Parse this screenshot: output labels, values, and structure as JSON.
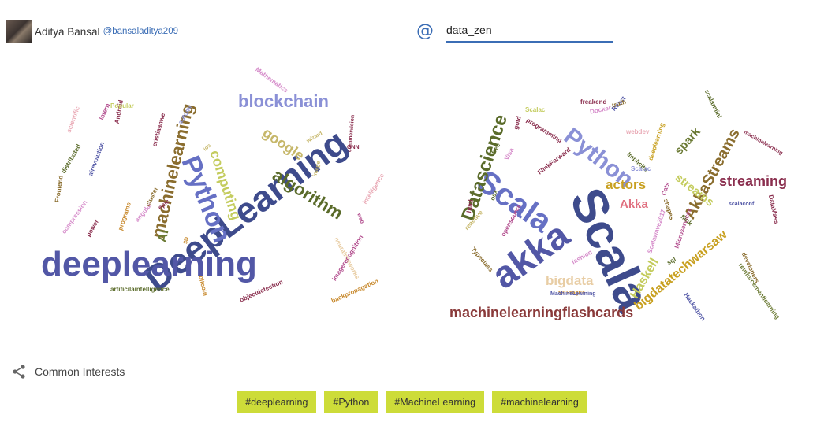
{
  "user": {
    "name": "Aditya Bansal",
    "handle": "@bansaladitya209"
  },
  "compare": {
    "at_symbol": "@",
    "input_value": "data_zen",
    "accent_color": "#3b6db5"
  },
  "left_cloud": {
    "words": [
      {
        "text": "DeepLearning",
        "color": "#3e4b8c"
      },
      {
        "text": "deeplearning",
        "color": "#5257a6"
      },
      {
        "text": "blockchain",
        "color": "#8a90d6"
      },
      {
        "text": "machinelearning",
        "color": "#8a6d2e"
      },
      {
        "text": "Python",
        "color": "#6670c4"
      },
      {
        "text": "algorithm",
        "color": "#5a6b2a"
      },
      {
        "text": "google",
        "color": "#c6b76a"
      },
      {
        "text": "computing",
        "color": "#c4cc5e"
      },
      {
        "text": "AI",
        "color": "#6b7a34"
      },
      {
        "text": "Mathematics",
        "color": "#d58ac9"
      },
      {
        "text": "intelligence",
        "color": "#e9a9b5"
      },
      {
        "text": "neuralnetworks",
        "color": "#e8cda4"
      },
      {
        "text": "imagerecognition",
        "color": "#b14a8c"
      },
      {
        "text": "backpropagation",
        "color": "#c88a2e"
      },
      {
        "text": "objectdetection",
        "color": "#8a2e4e"
      },
      {
        "text": "artificilaintelligence",
        "color": "#5a6b2a"
      },
      {
        "text": "bitcoin",
        "color": "#c88a2e"
      },
      {
        "text": "3D",
        "color": "#c88a2e"
      },
      {
        "text": "power",
        "color": "#8a2e4e"
      },
      {
        "text": "compression",
        "color": "#d58ac9"
      },
      {
        "text": "Frontend",
        "color": "#8a6d2e"
      },
      {
        "text": "distributed",
        "color": "#5a6b2a"
      },
      {
        "text": "airevolution",
        "color": "#5257a6"
      },
      {
        "text": "scientific",
        "color": "#e9a9b5"
      },
      {
        "text": "Intern",
        "color": "#b14a8c"
      },
      {
        "text": "Android",
        "color": "#8a2e4e"
      },
      {
        "text": "Popular",
        "color": "#c4cc5e"
      },
      {
        "text": "cristiaanwe",
        "color": "#8a2e4e"
      },
      {
        "text": "automl",
        "color": "#8a90d6"
      },
      {
        "text": "programs",
        "color": "#c88a2e"
      },
      {
        "text": "angular",
        "color": "#d58ac9"
      },
      {
        "text": "epic",
        "color": "#8a2e4e"
      },
      {
        "text": "ios",
        "color": "#c6b76a"
      },
      {
        "text": "wizard",
        "color": "#c6b76a"
      },
      {
        "text": "image",
        "color": "#c6b76a"
      },
      {
        "text": "commervision",
        "color": "#8a2e4e"
      },
      {
        "text": "GNN",
        "color": "#8a2e4e"
      },
      {
        "text": "web",
        "color": "#b14a8c"
      },
      {
        "text": "cluster",
        "color": "#8a6d2e"
      }
    ]
  },
  "right_cloud": {
    "words": [
      {
        "text": "Scala",
        "color": "#3e4b8c"
      },
      {
        "text": "akka",
        "color": "#5257a6"
      },
      {
        "text": "Scala",
        "color": "#6670c4"
      },
      {
        "text": "Python",
        "color": "#8a90d6"
      },
      {
        "text": "Datascience",
        "color": "#5a6b2a"
      },
      {
        "text": "AkkaStreams",
        "color": "#8a6d2e"
      },
      {
        "text": "streaming",
        "color": "#8a2e4e"
      },
      {
        "text": "machinelearningflashcards",
        "color": "#8a3a3a"
      },
      {
        "text": "bigdatatechwarsaw",
        "color": "#c8a020"
      },
      {
        "text": "Haskell",
        "color": "#c4cc5e"
      },
      {
        "text": "bigdata",
        "color": "#e8cda4"
      },
      {
        "text": "actors",
        "color": "#c8a020"
      },
      {
        "text": "Akka",
        "color": "#e07080"
      },
      {
        "text": "spark",
        "color": "#6b7a34"
      },
      {
        "text": "streams",
        "color": "#c4cc5e"
      },
      {
        "text": "Hackathon",
        "color": "#5257a6"
      },
      {
        "text": "reinforcementlearning",
        "color": "#6b7a34"
      },
      {
        "text": "developers",
        "color": "#8a6d2e"
      },
      {
        "text": "machinelearning",
        "color": "#8a2e4e"
      },
      {
        "text": "Microservices",
        "color": "#b14a8c"
      },
      {
        "text": "Scalawave2017",
        "color": "#d58ac9"
      },
      {
        "text": "MLPrague",
        "color": "#c88a2e"
      },
      {
        "text": "MachineLearning",
        "color": "#5257a6"
      },
      {
        "text": "Typeclass",
        "color": "#8a6d2e"
      },
      {
        "text": "opensource",
        "color": "#b14a8c"
      },
      {
        "text": "reactive",
        "color": "#c6b76a"
      },
      {
        "text": "html",
        "color": "#8a2e4e"
      },
      {
        "text": "free",
        "color": "#5a6b2a"
      },
      {
        "text": "Visa",
        "color": "#d58ac9"
      },
      {
        "text": "gotd",
        "color": "#8a2e4e"
      },
      {
        "text": "Scalac",
        "color": "#c4cc5e"
      },
      {
        "text": "programming",
        "color": "#8a2e4e"
      },
      {
        "text": "FlinkForward",
        "color": "#8a2e4e"
      },
      {
        "text": "freakend",
        "color": "#8a2e4e"
      },
      {
        "text": "Docker",
        "color": "#d58ac9"
      },
      {
        "text": "React",
        "color": "#5257a6"
      },
      {
        "text": "truth",
        "color": "#8a6d2e"
      },
      {
        "text": "scalarmini",
        "color": "#5a6b2a"
      },
      {
        "text": "webdev",
        "color": "#e9a9b5"
      },
      {
        "text": "deeplearning",
        "color": "#c8a020"
      },
      {
        "text": "Implicits",
        "color": "#5a6b2a"
      },
      {
        "text": "Scalac",
        "color": "#8a90d6"
      },
      {
        "text": "Cats",
        "color": "#b14a8c"
      },
      {
        "text": "shapes",
        "color": "#8a6d2e"
      },
      {
        "text": "flink",
        "color": "#5a6b2a"
      },
      {
        "text": "scalaconf",
        "color": "#5257a6"
      },
      {
        "text": "DataMass",
        "color": "#8a2e4e"
      },
      {
        "text": "fashion",
        "color": "#d58ac9"
      },
      {
        "text": "sql",
        "color": "#5a6b2a"
      },
      {
        "text": "osx",
        "color": "#5a6b2a"
      }
    ]
  },
  "common_interests": {
    "label": "Common Interests",
    "tags": [
      "#deeplearning",
      "#Python",
      "#MachineLearning",
      "#machinelearning"
    ],
    "tag_color": "#cddc39"
  }
}
